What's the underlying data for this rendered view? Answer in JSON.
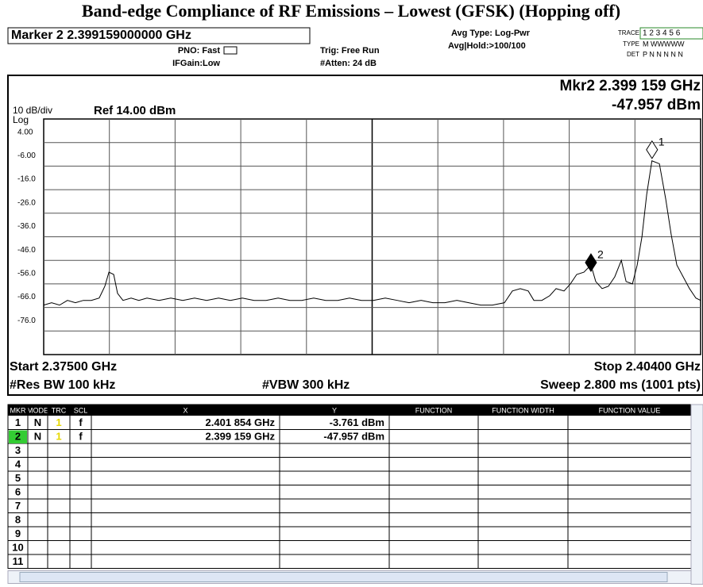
{
  "title": "Band-edge Compliance of RF Emissions – Lowest (GFSK) (Hopping off)",
  "header": {
    "marker_box": "Marker 2 2.399159000000 GHz",
    "pno": "PNO: Fast",
    "ifgain": "IFGain:Low",
    "trig": "Trig: Free Run",
    "atten": "#Atten: 24 dB",
    "avg_type": "Avg Type: Log-Pwr",
    "avg_hold": "Avg|Hold:>100/100",
    "trace_label": "TRACE",
    "trace_nums": "1 2 3 4 5 6",
    "type_label": "TYPE",
    "type_vals": "M WWWWW",
    "det_label": "DET",
    "det_vals": "P N N N N N"
  },
  "chart_data": {
    "type": "line",
    "scale_label": "10 dB/div",
    "ref_label": "Ref 14.00 dBm",
    "log_label": "Log",
    "mkr_readout_freq": "Mkr2 2.399 159 GHz",
    "mkr_readout_amp": "-47.957 dBm",
    "start_label": "Start 2.37500 GHz",
    "stop_label": "Stop 2.40400 GHz",
    "rbw_label": "#Res BW 100 kHz",
    "vbw_label": "#VBW 300 kHz",
    "sweep_label": "Sweep  2.800 ms (1001 pts)",
    "xlim": [
      2.375,
      2.404
    ],
    "ylim": [
      -86,
      14
    ],
    "yticks": [
      {
        "value": 4,
        "label": "4.00"
      },
      {
        "value": -6,
        "label": "-6.00"
      },
      {
        "value": -16,
        "label": "-16.0"
      },
      {
        "value": -26,
        "label": "-26.0"
      },
      {
        "value": -36,
        "label": "-36.0"
      },
      {
        "value": -46,
        "label": "-46.0"
      },
      {
        "value": -56,
        "label": "-56.0"
      },
      {
        "value": -66,
        "label": "-66.0"
      },
      {
        "value": -76,
        "label": "-76.0"
      }
    ],
    "grid": true,
    "x": [
      2.375,
      2.37535,
      2.3757,
      2.37605,
      2.3764,
      2.37675,
      2.3771,
      2.37745,
      2.3777,
      2.37788,
      2.37809,
      2.37826,
      2.3785,
      2.37886,
      2.3792,
      2.37956,
      2.38009,
      2.38061,
      2.38114,
      2.38166,
      2.38219,
      2.38272,
      2.38324,
      2.38377,
      2.38429,
      2.38482,
      2.38535,
      2.38587,
      2.3864,
      2.38692,
      2.38745,
      2.38798,
      2.3885,
      2.38903,
      2.38955,
      2.39008,
      2.39061,
      2.39113,
      2.39166,
      2.39218,
      2.39271,
      2.39324,
      2.39376,
      2.39429,
      2.39481,
      2.39534,
      2.39569,
      2.39604,
      2.39639,
      2.39664,
      2.39699,
      2.39734,
      2.39762,
      2.39797,
      2.39825,
      2.39853,
      2.39885,
      2.39916,
      2.39937,
      2.39965,
      2.39993,
      2.40021,
      2.4005,
      2.40071,
      2.40099,
      2.4012,
      2.40141,
      2.40162,
      2.40185,
      2.40218,
      2.40246,
      2.4027,
      2.40295,
      2.40323,
      2.40351,
      2.40379,
      2.404
    ],
    "series": [
      {
        "name": "Trace 1",
        "color": "#000000",
        "values": [
          -65,
          -64,
          -65,
          -63,
          -64,
          -63,
          -63,
          -62,
          -57,
          -51,
          -52,
          -60,
          -63,
          -62,
          -63,
          -62,
          -63,
          -62,
          -63,
          -62,
          -63,
          -62,
          -63,
          -62,
          -63,
          -63,
          -62,
          -63,
          -63,
          -62,
          -63,
          -63,
          -62,
          -63,
          -63,
          -62,
          -63,
          -64,
          -63,
          -64,
          -64,
          -63,
          -64,
          -65,
          -65,
          -64,
          -59,
          -58,
          -59,
          -63,
          -63,
          -61,
          -58,
          -59,
          -56,
          -52,
          -51,
          -47.957,
          -55,
          -58,
          -57,
          -53,
          -46,
          -55,
          -56,
          -48,
          -36,
          -18,
          -3.761,
          -5,
          -20,
          -35,
          -48,
          -53,
          -58,
          -62,
          -63
        ]
      }
    ],
    "markers": [
      {
        "label": "1",
        "x": 2.401854,
        "y": -3.761,
        "style": "open"
      },
      {
        "label": "2",
        "x": 2.399159,
        "y": -47.957,
        "style": "filled"
      }
    ]
  },
  "marker_table": {
    "header": [
      "MKR",
      "MODE",
      "TRC",
      "SCL",
      "X",
      "Y",
      "FUNCTION",
      "FUNCTION WIDTH",
      "FUNCTION VALUE"
    ],
    "rows": [
      {
        "mkr": "1",
        "mode": "N",
        "trc": "1",
        "scl": "f",
        "x": "2.401 854 GHz",
        "y": "-3.761 dBm"
      },
      {
        "mkr": "2",
        "mode": "N",
        "trc": "1",
        "scl": "f",
        "x": "2.399 159 GHz",
        "y": "-47.957 dBm"
      },
      {
        "mkr": "3"
      },
      {
        "mkr": "4"
      },
      {
        "mkr": "5"
      },
      {
        "mkr": "6"
      },
      {
        "mkr": "7"
      },
      {
        "mkr": "8"
      },
      {
        "mkr": "9"
      },
      {
        "mkr": "10"
      },
      {
        "mkr": "11"
      }
    ]
  }
}
